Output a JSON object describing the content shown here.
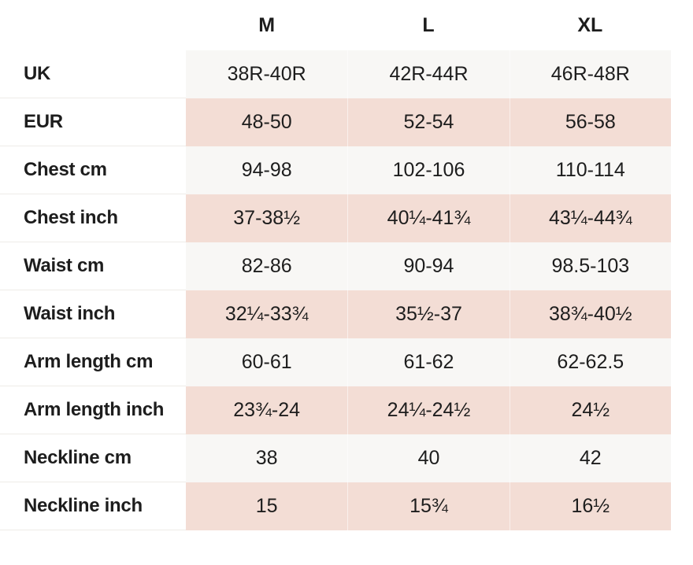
{
  "chart_data": {
    "type": "table",
    "columns": [
      "M",
      "L",
      "XL"
    ],
    "rows": [
      {
        "label": "UK",
        "values": [
          "38R-40R",
          "42R-44R",
          "46R-48R"
        ]
      },
      {
        "label": "EUR",
        "values": [
          "48-50",
          "52-54",
          "56-58"
        ]
      },
      {
        "label": "Chest cm",
        "values": [
          "94-98",
          "102-106",
          "110-114"
        ]
      },
      {
        "label": "Chest inch",
        "values": [
          "37-38½",
          "40¼-41¾",
          "43¼-44¾"
        ]
      },
      {
        "label": "Waist cm",
        "values": [
          "82-86",
          "90-94",
          "98.5-103"
        ]
      },
      {
        "label": "Waist inch",
        "values": [
          "32¼-33¾",
          "35½-37",
          "38¾-40½"
        ]
      },
      {
        "label": "Arm length cm",
        "values": [
          "60-61",
          "61-62",
          "62-62.5"
        ]
      },
      {
        "label": "Arm length inch",
        "values": [
          "23¾-24",
          "24¼-24½",
          "24½"
        ]
      },
      {
        "label": "Neckline cm",
        "values": [
          "38",
          "40",
          "42"
        ]
      },
      {
        "label": "Neckline inch",
        "values": [
          "15",
          "15¾",
          "16½"
        ]
      }
    ]
  },
  "colors": {
    "row-light": "#f8f7f5",
    "row-pink": "#f3ddd5",
    "text": "#1d1d1d",
    "label-border": "#eeebe8"
  }
}
